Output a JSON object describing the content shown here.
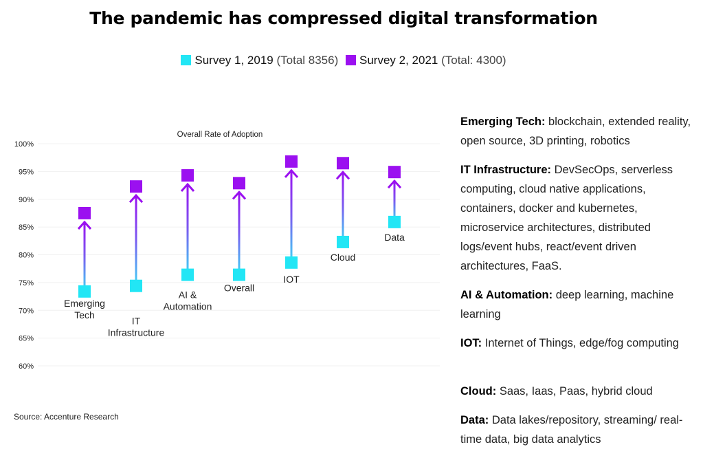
{
  "title": "The pandemic has compressed digital transformation",
  "legend": [
    {
      "label": "Survey 1, 2019",
      "sub": "(Total 8356)",
      "color": "#22e6f5"
    },
    {
      "label": "Survey 2, 2021",
      "sub": "(Total: 4300)",
      "color": "#9b10f0"
    }
  ],
  "source": "Source: Accenture Research",
  "chart_data": {
    "type": "scatter",
    "title": "Overall Rate of Adoption",
    "ylim": [
      60,
      100
    ],
    "yticks": [
      "100%",
      "95%",
      "90%",
      "85%",
      "80%",
      "75%",
      "70%",
      "65%",
      "60%"
    ],
    "ytick_values": [
      100,
      95,
      90,
      85,
      80,
      75,
      70,
      65,
      60
    ],
    "grid": true,
    "categories": [
      {
        "lines": [
          "Emerging",
          "Tech"
        ]
      },
      {
        "lines": [
          "IT",
          "Infrastructure"
        ]
      },
      {
        "lines": [
          "AI &",
          "Automation"
        ]
      },
      {
        "lines": [
          "Overall"
        ]
      },
      {
        "lines": [
          "IOT"
        ]
      },
      {
        "lines": [
          "Cloud"
        ]
      },
      {
        "lines": [
          "Data"
        ]
      }
    ],
    "series": [
      {
        "name": "Survey 1, 2019",
        "color": "#22e6f5",
        "values": [
          73.4,
          74.4,
          76.4,
          76.4,
          78.6,
          82.3,
          85.9
        ]
      },
      {
        "name": "Survey 2, 2021",
        "color": "#9b10f0",
        "values": [
          87.5,
          92.3,
          94.3,
          92.9,
          96.8,
          96.5,
          94.9
        ]
      }
    ]
  },
  "definitions": [
    {
      "term": "Emerging Tech:",
      "text": " blockchain, extended reality, open source, 3D printing, robotics"
    },
    {
      "term": "IT Infrastructure:",
      "text": " DevSecOps, serverless computing, cloud native applications, containers, docker and kubernetes, microservice architectures, distributed logs/event hubs, react/event driven architectures, FaaS."
    },
    {
      "term": "AI & Automation:",
      "text": " deep learning, machine learning"
    },
    {
      "term": "IOT:",
      "text": " Internet of Things, edge/fog computing"
    },
    {
      "term": "Cloud:",
      "text": " Saas, Iaas, Paas, hybrid cloud"
    },
    {
      "term": "Data:",
      "text": " Data lakes/repository, streaming/ real-time data, big data analytics"
    }
  ]
}
